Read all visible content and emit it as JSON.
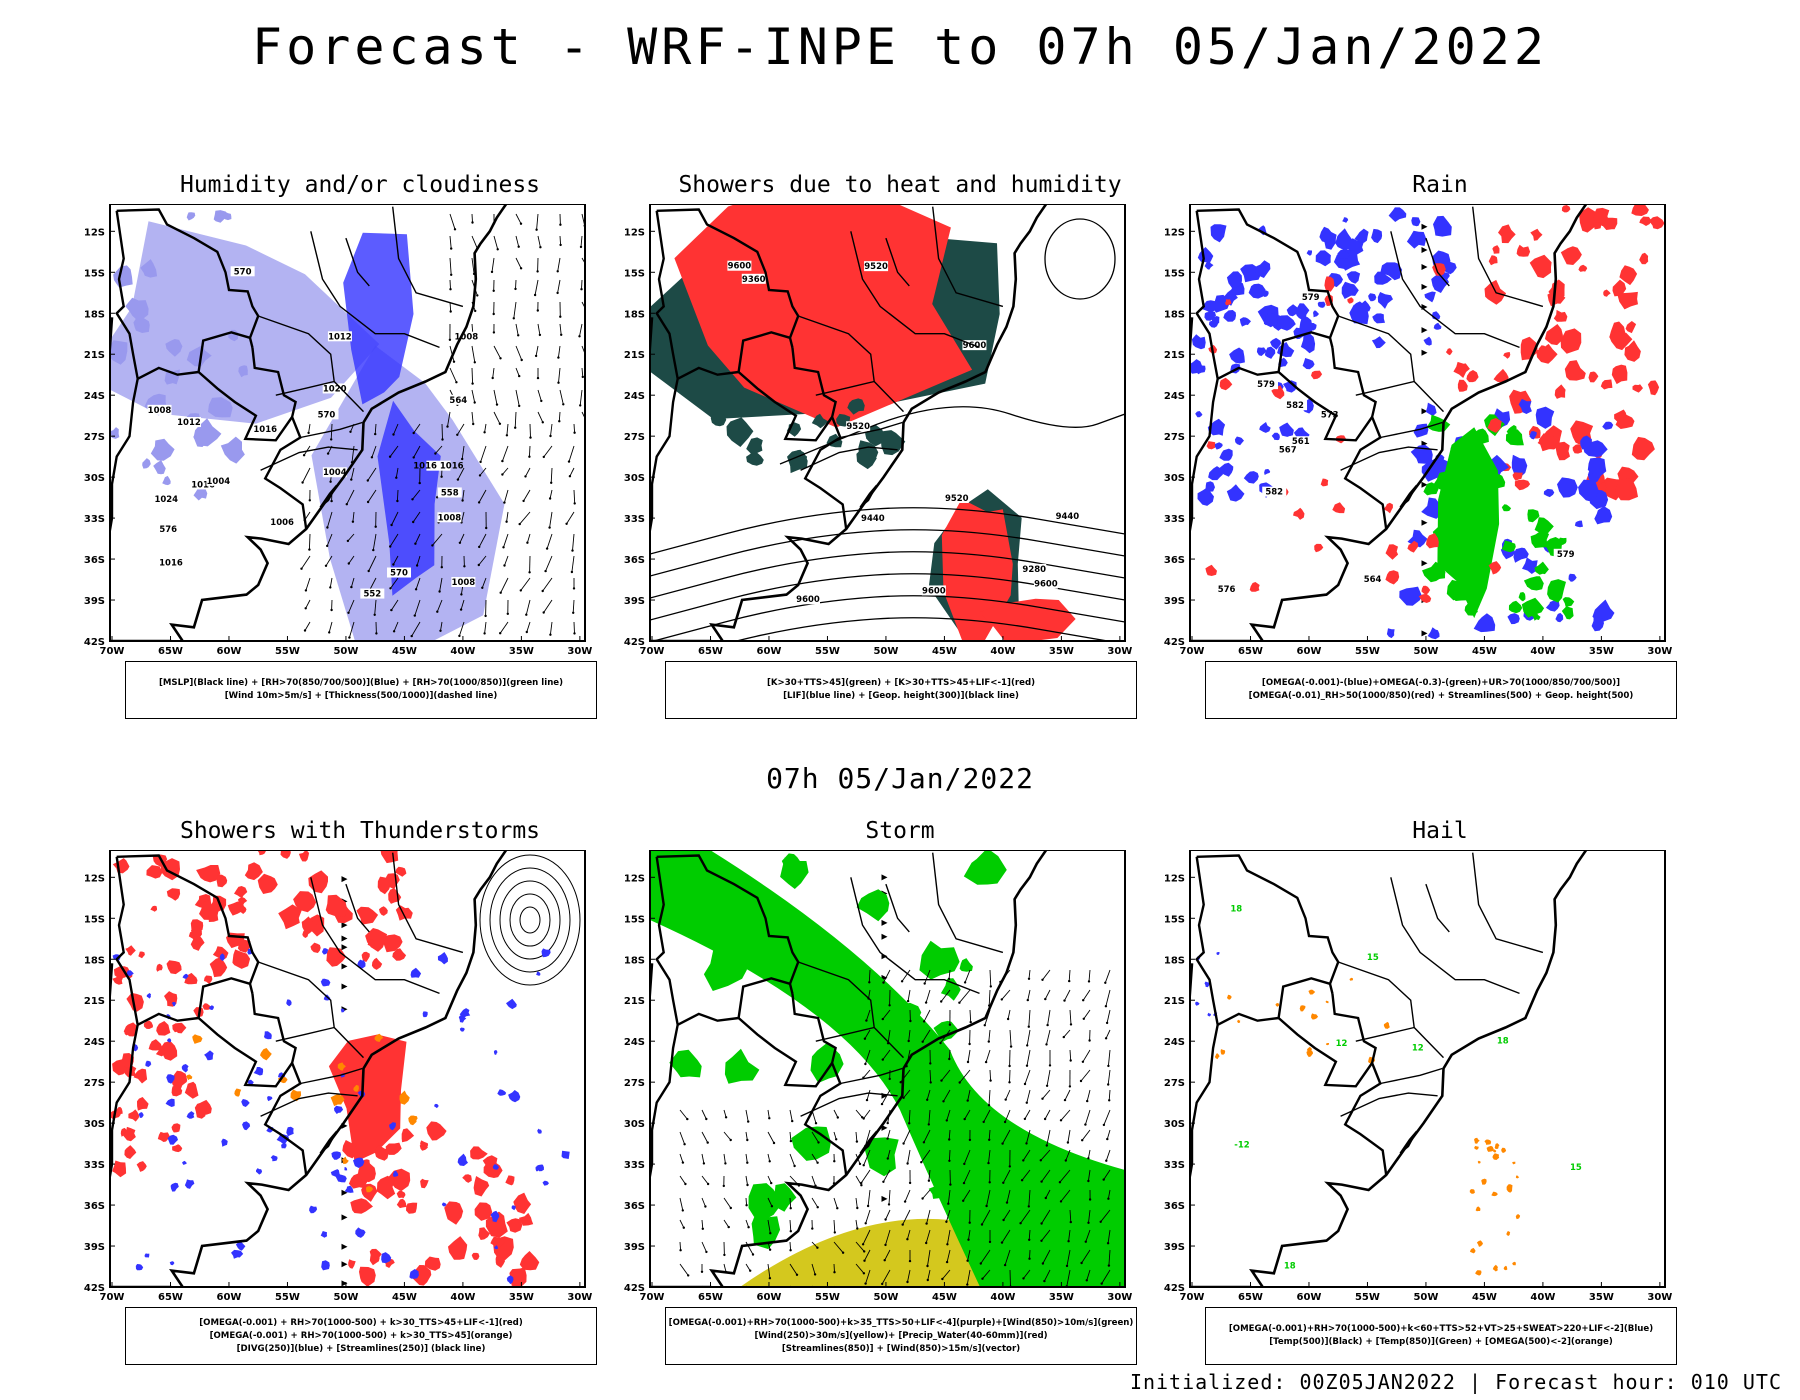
{
  "header": {
    "title": "Forecast - WRF-INPE to 07h 05/Jan/2022",
    "subtitle": "07h 05/Jan/2022",
    "footer": "Initialized: 00Z05JAN2022 | Forecast hour: 010 UTC"
  },
  "axes": {
    "lat_labels": [
      "12S",
      "15S",
      "18S",
      "21S",
      "24S",
      "27S",
      "30S",
      "33S",
      "36S",
      "39S",
      "42S"
    ],
    "lon_labels": [
      "70W",
      "65W",
      "60W",
      "55W",
      "50W",
      "45W",
      "40W",
      "35W",
      "30W"
    ]
  },
  "colors": {
    "blue": "#3333ff",
    "light_blue": "#9999ee",
    "green": "#00cc00",
    "red": "#ff3333",
    "dark_teal": "#1d4a46",
    "orange": "#ff8800",
    "yellow": "#d4c81e",
    "black": "#000000"
  },
  "panels": [
    {
      "title": "Humidity and/or cloudiness",
      "legend": [
        "[MSLP](Black line) + [RH>70(850/700/500)](Blue) + [RH>70(1000/850)](green line)",
        "[Wind 10m>5m/s] + [Thickness(500/1000)](dashed line)"
      ],
      "contour_labels": [
        "1012",
        "1008",
        "1008",
        "1006",
        "1016",
        "1020",
        "1024",
        "1016",
        "1012",
        "1004",
        "1008",
        "1004",
        "1016",
        "1016 1016",
        "1008",
        "576",
        "570",
        "564",
        "558",
        "552",
        "570",
        "570"
      ]
    },
    {
      "title": "Showers due to heat and humidity",
      "legend": [
        "[K>30+TTS>45](green) + [K>30+TTS>45+LIF<-1](red)",
        "[LIF](blue line) + [Geop. height(300)](black line)"
      ],
      "contour_labels": [
        "9600",
        "9600",
        "9520",
        "9600",
        "9520",
        "9600",
        "9440",
        "9360",
        "9280",
        "9440",
        "9520",
        "9600"
      ]
    },
    {
      "title": "Rain",
      "legend": [
        "[OMEGA(-0.001)-(blue)+OMEGA(-0.3)-(green)+UR>70(1000/850/700/500)]",
        "[OMEGA(-0.01)_RH>50(1000/850)(red) + Streamlines(500) + Geop. height(500)"
      ],
      "contour_labels": [
        "582",
        "582",
        "579",
        "579",
        "576",
        "573",
        "579",
        "567",
        "561",
        "564"
      ]
    },
    {
      "title": "Showers with Thunderstorms",
      "legend": [
        "[OMEGA(-0.001) + RH>70(1000-500) + k>30_TTS>45+LIF<-1](red)",
        "[OMEGA(-0.001) + RH>70(1000-500) + k>30_TTS>45](orange)",
        "[DIVG(250)](blue) + [Streamlines(250)] (black line)"
      ],
      "contour_labels": []
    },
    {
      "title": "Storm",
      "legend": [
        "[OMEGA(-0.001)+RH>70(1000-500)+k>35_TTS>50+LIF<-4](purple)+[Wind(850)>10m/s](green)",
        "[Wind(250)>30m/s](yellow)+ [Precip_Water(40-60mm)](red)",
        "[Streamlines(850)] + [Wind(850)>15m/s](vector)"
      ],
      "contour_labels": []
    },
    {
      "title": "Hail",
      "legend": [
        "[OMEGA(-0.001)+RH>70(1000-500)+k<60+TTS>52+VT>25+SWEAT>220+LIF<-2](Blue)",
        "[Temp(500)](Black) + [Temp(850)](Green) + [OMEGA(500)<-2](orange)"
      ],
      "contour_labels": [
        "18",
        "18",
        "18",
        "15",
        "15",
        "12",
        "12",
        "-12"
      ]
    }
  ]
}
